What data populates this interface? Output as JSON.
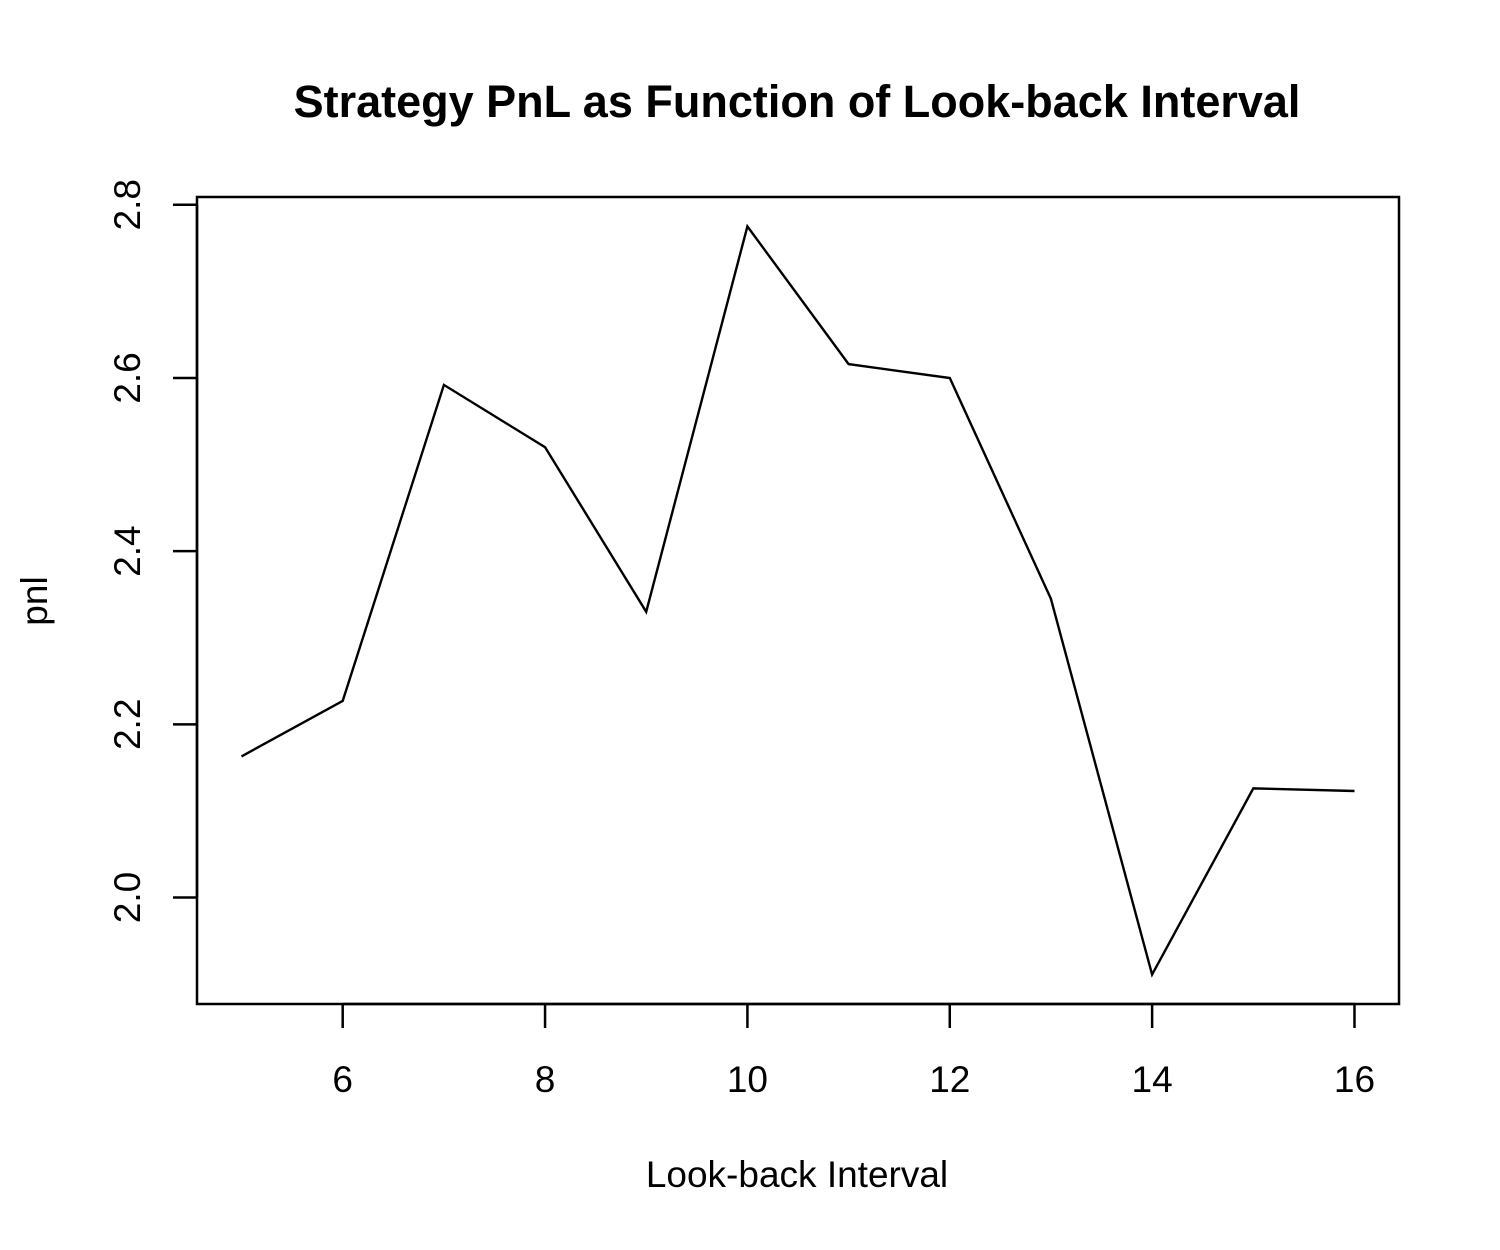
{
  "chart_data": {
    "type": "line",
    "title": "Strategy PnL as Function of Look-back Interval",
    "xlabel": "Look-back Interval",
    "ylabel": "pnl",
    "x": [
      5,
      6,
      7,
      8,
      9,
      10,
      11,
      12,
      13,
      14,
      15,
      16
    ],
    "series": [
      {
        "values": [
          2.163,
          2.227,
          2.592,
          2.52,
          2.33,
          2.775,
          2.616,
          2.6,
          2.345,
          1.911,
          2.126,
          2.123
        ]
      }
    ],
    "xlim": [
      4.56,
      16.44
    ],
    "ylim": [
      1.877,
      2.809
    ],
    "xticks": [
      6,
      8,
      10,
      12,
      14,
      16
    ],
    "xtick_labels": [
      "6",
      "8",
      "10",
      "12",
      "14",
      "16"
    ],
    "yticks": [
      2.0,
      2.2,
      2.4,
      2.6,
      2.8
    ],
    "ytick_labels": [
      "2.0",
      "2.2",
      "2.4",
      "2.6",
      "2.8"
    ],
    "grid": false,
    "colors": {
      "line": "#000000",
      "frame": "#000000",
      "background": "#ffffff"
    }
  }
}
